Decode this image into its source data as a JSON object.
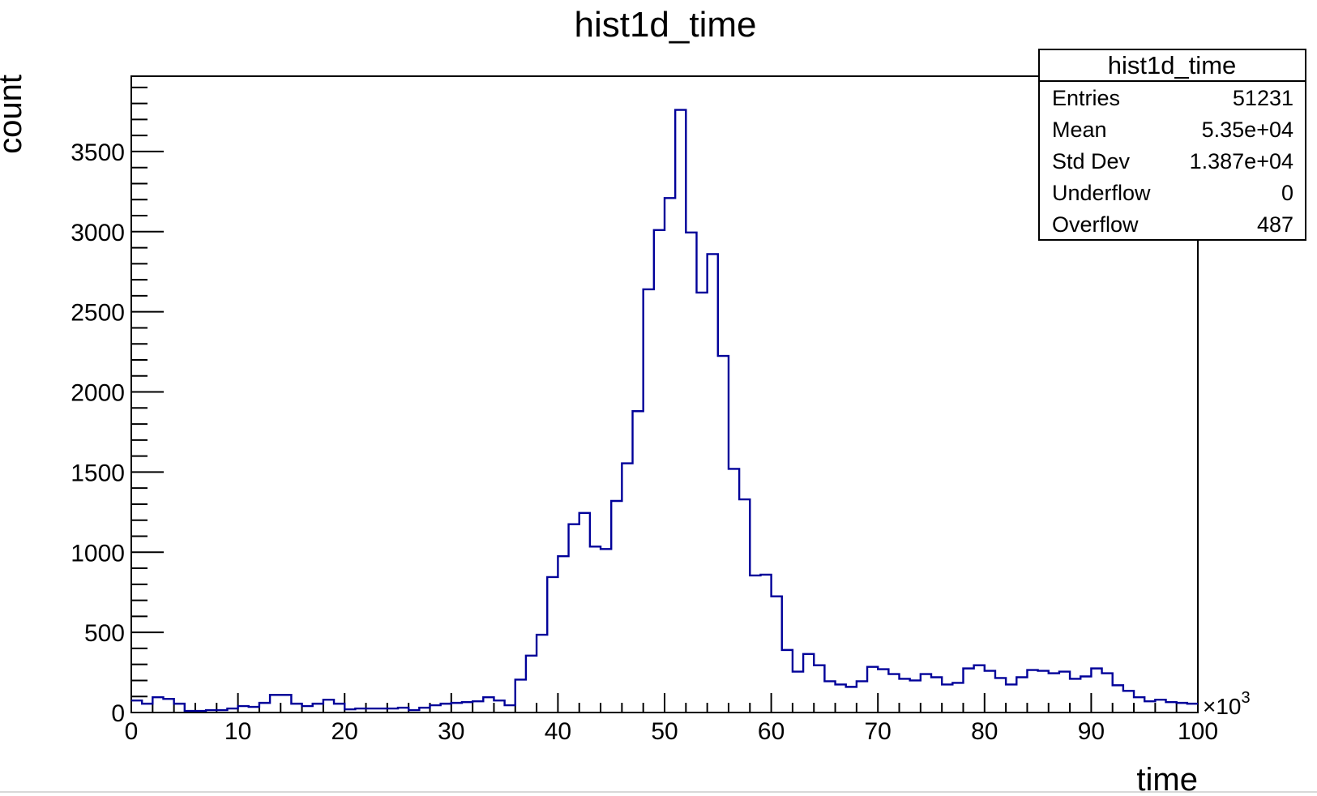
{
  "chart_data": {
    "type": "histogram",
    "title": "hist1d_time",
    "xlabel": "time",
    "ylabel": "count",
    "x_multiplier_label": "×10",
    "x_multiplier_exp": "3",
    "xlim": [
      0,
      100
    ],
    "ylim": [
      0,
      3970
    ],
    "x_ticks": [
      0,
      10,
      20,
      30,
      40,
      50,
      60,
      70,
      80,
      90,
      100
    ],
    "y_ticks": [
      0,
      500,
      1000,
      1500,
      2000,
      2500,
      3000,
      3500
    ],
    "bin_width": 1,
    "line_color": "#000099",
    "grid": false,
    "values": [
      75,
      55,
      95,
      85,
      55,
      10,
      10,
      15,
      15,
      25,
      40,
      35,
      60,
      110,
      110,
      55,
      40,
      55,
      80,
      55,
      20,
      25,
      25,
      25,
      25,
      30,
      15,
      30,
      45,
      55,
      60,
      65,
      70,
      95,
      75,
      45,
      205,
      355,
      485,
      845,
      975,
      1175,
      1245,
      1035,
      1020,
      1320,
      1555,
      1880,
      2640,
      3010,
      3210,
      3760,
      2995,
      2620,
      2860,
      2225,
      1520,
      1330,
      855,
      860,
      725,
      390,
      255,
      365,
      295,
      195,
      175,
      160,
      195,
      285,
      270,
      240,
      210,
      200,
      240,
      220,
      175,
      185,
      275,
      295,
      260,
      215,
      175,
      220,
      265,
      260,
      245,
      255,
      210,
      225,
      275,
      245,
      170,
      135,
      95,
      70,
      80,
      65,
      60,
      55
    ],
    "stats_box": {
      "title": "hist1d_time",
      "rows": [
        {
          "label": "Entries",
          "value": "51231"
        },
        {
          "label": "Mean",
          "value": "5.35e+04"
        },
        {
          "label": "Std Dev",
          "value": "1.387e+04"
        },
        {
          "label": "Underflow",
          "value": "0"
        },
        {
          "label": "Overflow",
          "value": "487"
        }
      ]
    }
  }
}
